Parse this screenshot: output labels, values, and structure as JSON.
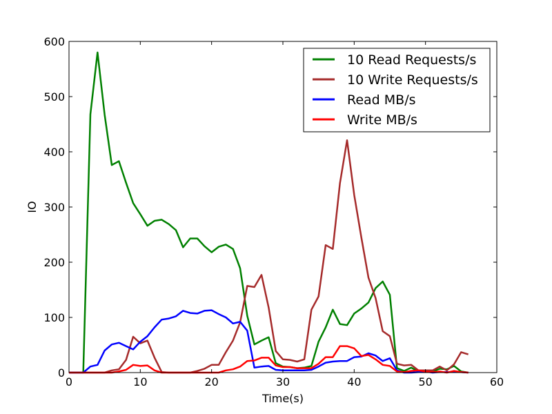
{
  "chart_data": {
    "type": "line",
    "title": "",
    "xlabel": "Time(s)",
    "ylabel": "IO",
    "xlim": [
      0,
      60
    ],
    "ylim": [
      0,
      600
    ],
    "xticks": [
      "0",
      "10",
      "20",
      "30",
      "40",
      "50",
      "60"
    ],
    "yticks": [
      "0",
      "100",
      "200",
      "300",
      "400",
      "500",
      "600"
    ],
    "grid": false,
    "legend_position": "top-right",
    "series": [
      {
        "name": "10 Read Requests/s",
        "color": "#008000",
        "x": [
          0,
          1,
          2,
          3,
          4,
          5,
          6,
          7,
          8,
          9,
          10,
          11,
          12,
          13,
          14,
          15,
          16,
          17,
          18,
          19,
          20,
          21,
          22,
          23,
          24,
          25,
          26,
          27,
          28,
          29,
          30,
          31,
          32,
          33,
          34,
          35,
          36,
          37,
          38,
          39,
          40,
          41,
          42,
          43,
          44,
          45,
          46,
          47,
          48,
          49,
          50,
          51,
          52,
          53,
          54,
          55,
          56
        ],
        "values": [
          0,
          0,
          0,
          468,
          580,
          467,
          376,
          383,
          344,
          307,
          287,
          266,
          275,
          277,
          269,
          258,
          227,
          243,
          243,
          229,
          218,
          228,
          232,
          224,
          189,
          103,
          51,
          58,
          64,
          17,
          11,
          10,
          8,
          9,
          12,
          56,
          82,
          114,
          88,
          86,
          107,
          116,
          127,
          153,
          165,
          141,
          8,
          3,
          9,
          2,
          4,
          2,
          7,
          6,
          12,
          2,
          0
        ]
      },
      {
        "name": "10 Write Requests/s",
        "color": "#A52A2A",
        "x": [
          0,
          1,
          2,
          3,
          4,
          5,
          6,
          7,
          8,
          9,
          10,
          11,
          12,
          13,
          14,
          15,
          16,
          17,
          18,
          19,
          20,
          21,
          22,
          23,
          24,
          25,
          26,
          27,
          28,
          29,
          30,
          31,
          32,
          33,
          34,
          35,
          36,
          37,
          38,
          39,
          40,
          41,
          42,
          43,
          44,
          45,
          46,
          47,
          48,
          49,
          50,
          51,
          52,
          53,
          54,
          55,
          56
        ],
        "values": [
          0,
          0,
          0,
          0,
          0,
          0,
          4,
          6,
          23,
          65,
          53,
          58,
          27,
          1,
          0,
          0,
          0,
          0,
          3,
          7,
          14,
          14,
          37,
          58,
          91,
          157,
          155,
          177,
          118,
          39,
          24,
          23,
          20,
          24,
          114,
          138,
          231,
          224,
          343,
          421,
          322,
          245,
          172,
          135,
          75,
          66,
          16,
          13,
          14,
          4,
          4,
          4,
          11,
          4,
          15,
          37,
          33
        ]
      },
      {
        "name": "Read MB/s",
        "color": "#0000FF",
        "x": [
          0,
          1,
          2,
          3,
          4,
          5,
          6,
          7,
          8,
          9,
          10,
          11,
          12,
          13,
          14,
          15,
          16,
          17,
          18,
          19,
          20,
          21,
          22,
          23,
          24,
          25,
          26,
          27,
          28,
          29,
          30,
          31,
          32,
          33,
          34,
          35,
          36,
          37,
          38,
          39,
          40,
          41,
          42,
          43,
          44,
          45,
          46,
          47,
          48,
          49,
          50,
          51,
          52,
          53,
          54,
          55,
          56
        ],
        "values": [
          0,
          0,
          0,
          11,
          14,
          40,
          51,
          54,
          48,
          42,
          56,
          66,
          82,
          96,
          98,
          102,
          112,
          108,
          107,
          112,
          113,
          106,
          100,
          89,
          92,
          76,
          9,
          11,
          12,
          5,
          4,
          4,
          4,
          4,
          5,
          11,
          18,
          20,
          21,
          21,
          28,
          29,
          35,
          31,
          21,
          26,
          4,
          0,
          0,
          1,
          2,
          0,
          1,
          1,
          1,
          1,
          0
        ]
      },
      {
        "name": "Write MB/s",
        "color": "#FF0000",
        "x": [
          0,
          1,
          2,
          3,
          4,
          5,
          6,
          7,
          8,
          9,
          10,
          11,
          12,
          13,
          14,
          15,
          16,
          17,
          18,
          19,
          20,
          21,
          22,
          23,
          24,
          25,
          26,
          27,
          28,
          29,
          30,
          31,
          32,
          33,
          34,
          35,
          36,
          37,
          38,
          39,
          40,
          41,
          42,
          43,
          44,
          45,
          46,
          47,
          48,
          49,
          50,
          51,
          52,
          53,
          54,
          55,
          56
        ],
        "values": [
          0,
          0,
          0,
          0,
          0,
          0,
          0,
          2,
          5,
          14,
          12,
          13,
          4,
          0,
          0,
          0,
          0,
          0,
          0,
          0,
          0,
          0,
          4,
          6,
          11,
          21,
          22,
          27,
          27,
          13,
          10,
          10,
          8,
          8,
          8,
          16,
          28,
          28,
          48,
          48,
          44,
          30,
          32,
          24,
          14,
          12,
          2,
          1,
          3,
          4,
          2,
          1,
          2,
          0,
          3,
          1,
          0
        ]
      }
    ]
  }
}
